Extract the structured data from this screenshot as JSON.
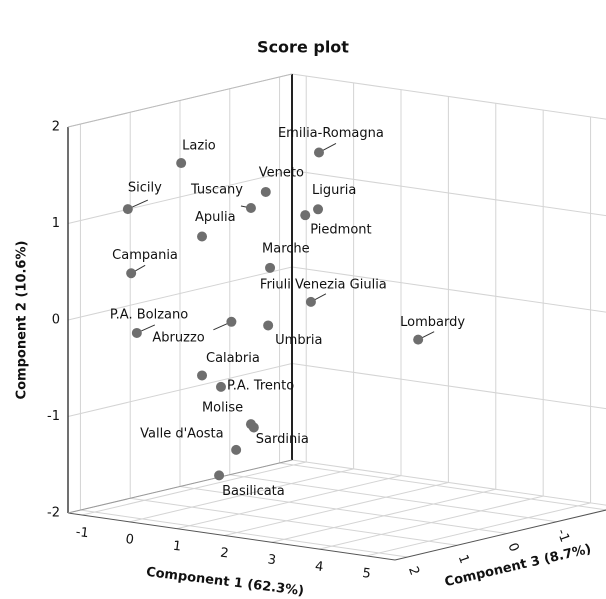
{
  "chart_data": {
    "type": "scatter3d",
    "title": "Score plot",
    "x_label": "Component 1 (62.3%)",
    "y_label": "Component 2 (10.6%)",
    "z_label": "Component 3 (8.7%)",
    "xlim": [
      -1.3,
      5.6
    ],
    "ylim": [
      -2,
      2
    ],
    "zlim": [
      2.25,
      -2.25
    ],
    "xticks": [
      -1,
      0,
      1,
      2,
      3,
      4,
      5
    ],
    "yticks": [
      -2,
      -1,
      0,
      1,
      2
    ],
    "zticks": [
      -2,
      -1,
      0,
      1,
      2
    ],
    "grid": true,
    "color": "#6e6e6e",
    "labels": [
      "Lazio",
      "Sicily",
      "Emilia-Romagna",
      "Veneto",
      "Tuscany",
      "Liguria",
      "Piedmont",
      "Apulia",
      "Campania",
      "Marche",
      "Friuli Venezia Giulia",
      "Lombardy",
      "P.A. Bolzano",
      "Abruzzo",
      "Umbria",
      "Calabria",
      "P.A. Trento",
      "Molise",
      "Sardinia",
      "Valle d'Aosta",
      "Basilicata"
    ],
    "x": [
      -0.33,
      -0.51,
      1.16,
      0.51,
      0.67,
      1.14,
      0.87,
      0.11,
      -0.44,
      0.6,
      0.99,
      2.78,
      -0.32,
      0.73,
      0.56,
      0.11,
      0.51,
      0.67,
      0.73,
      0.83,
      0.47
    ],
    "y": [
      1.53,
      1.15,
      1.58,
      1.18,
      1.08,
      0.99,
      0.91,
      0.8,
      0.49,
      0.4,
      0.02,
      -0.3,
      -0.12,
      -0.04,
      -0.2,
      -0.64,
      -0.73,
      -1.16,
      -1.19,
      -1.36,
      -1.65
    ],
    "z": [
      0.9,
      1.8,
      -0.45,
      0,
      0.45,
      -0.45,
      -0.45,
      0.9,
      1.8,
      0,
      -0.45,
      -0.9,
      1.8,
      0.9,
      0,
      0.9,
      0.9,
      0.45,
      0.45,
      0.9,
      0.9
    ]
  }
}
